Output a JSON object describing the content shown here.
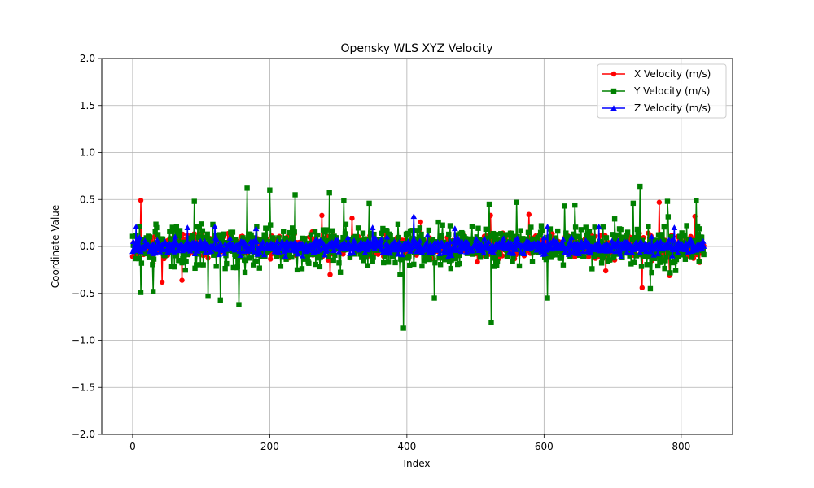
{
  "chart_data": {
    "type": "line",
    "title": "Opensky WLS XYZ Velocity",
    "xlabel": "Index",
    "ylabel": "Coordinate Value",
    "xlim": [
      -45,
      875
    ],
    "ylim": [
      -2.0,
      2.0
    ],
    "x_ticks": [
      0,
      200,
      400,
      600,
      800
    ],
    "y_ticks": [
      -2.0,
      -1.5,
      -1.0,
      -0.5,
      0.0,
      0.5,
      1.0,
      1.5,
      2.0
    ],
    "x_tick_labels": [
      "0",
      "200",
      "400",
      "600",
      "800"
    ],
    "y_tick_labels": [
      "−2.0",
      "−1.5",
      "−1.0",
      "−0.5",
      "0.0",
      "0.5",
      "1.0",
      "1.5",
      "2.0"
    ],
    "grid": true,
    "legend_position": "top-right",
    "n_points": 834,
    "series": [
      {
        "name": "X Velocity (m/s)",
        "color": "#ff0000",
        "marker": "circle",
        "typical_amplitude": 0.12,
        "extremes": [
          [
            12,
            0.49
          ],
          [
            43,
            -0.38
          ],
          [
            72,
            -0.36
          ],
          [
            276,
            0.33
          ],
          [
            288,
            -0.3
          ],
          [
            320,
            0.3
          ],
          [
            420,
            0.26
          ],
          [
            522,
            0.33
          ],
          [
            578,
            0.34
          ],
          [
            690,
            -0.26
          ],
          [
            743,
            -0.44
          ],
          [
            768,
            0.47
          ],
          [
            783,
            -0.31
          ],
          [
            820,
            0.32
          ]
        ]
      },
      {
        "name": "Y Velocity (m/s)",
        "color": "#008000",
        "marker": "square",
        "typical_amplitude": 0.22,
        "extremes": [
          [
            12,
            -0.49
          ],
          [
            30,
            -0.48
          ],
          [
            90,
            0.48
          ],
          [
            110,
            -0.53
          ],
          [
            128,
            -0.57
          ],
          [
            155,
            -0.62
          ],
          [
            167,
            0.62
          ],
          [
            200,
            0.6
          ],
          [
            237,
            0.55
          ],
          [
            287,
            0.57
          ],
          [
            308,
            0.49
          ],
          [
            345,
            0.46
          ],
          [
            395,
            -0.87
          ],
          [
            440,
            -0.55
          ],
          [
            520,
            0.45
          ],
          [
            523,
            -0.81
          ],
          [
            560,
            0.47
          ],
          [
            605,
            -0.55
          ],
          [
            630,
            0.43
          ],
          [
            645,
            0.44
          ],
          [
            730,
            0.46
          ],
          [
            740,
            0.64
          ],
          [
            755,
            -0.45
          ],
          [
            780,
            0.48
          ],
          [
            822,
            0.49
          ]
        ]
      },
      {
        "name": "Z Velocity (m/s)",
        "color": "#0000ff",
        "marker": "triangle",
        "typical_amplitude": 0.08,
        "extremes": [
          [
            5,
            0.21
          ],
          [
            80,
            0.2
          ],
          [
            120,
            0.21
          ],
          [
            180,
            0.19
          ],
          [
            350,
            0.2
          ],
          [
            410,
            0.32
          ],
          [
            470,
            0.19
          ],
          [
            605,
            0.21
          ],
          [
            680,
            0.21
          ],
          [
            790,
            0.2
          ]
        ]
      }
    ]
  }
}
